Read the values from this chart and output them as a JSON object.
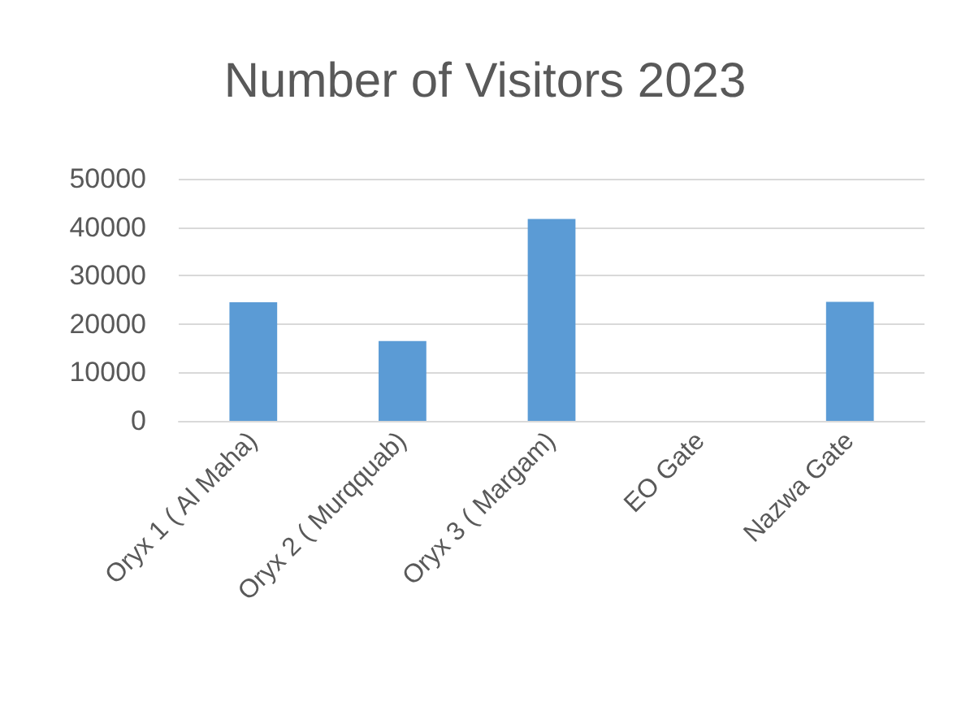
{
  "chart_data": {
    "type": "bar",
    "title": "Number of Visitors 2023",
    "categories": [
      "Oryx 1 ( Al Maha)",
      "Oryx 2 ( Murqquab)",
      "Oryx 3 ( Margam)",
      "EO Gate",
      "Nazwa Gate"
    ],
    "values": [
      24500,
      16500,
      41700,
      0,
      24600
    ],
    "color": "#5b9bd5",
    "ylim": [
      0,
      50000
    ],
    "yticks": [
      0,
      10000,
      20000,
      30000,
      40000,
      50000
    ],
    "grid": "y"
  }
}
